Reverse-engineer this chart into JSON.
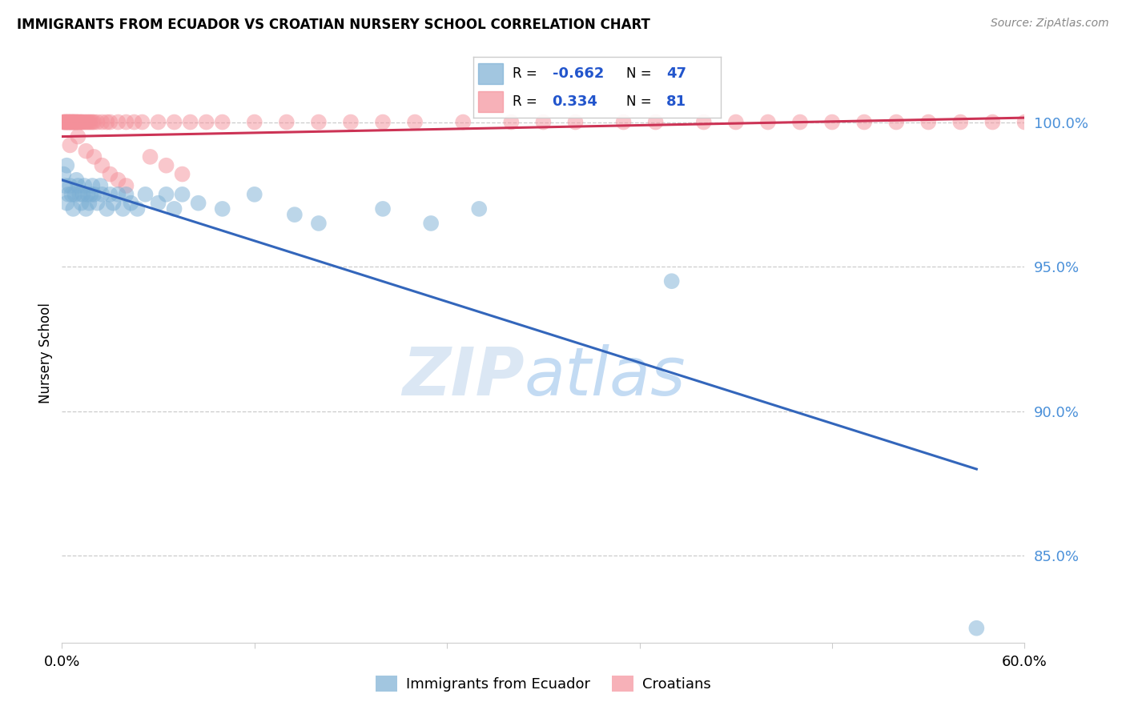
{
  "title": "IMMIGRANTS FROM ECUADOR VS CROATIAN NURSERY SCHOOL CORRELATION CHART",
  "source": "Source: ZipAtlas.com",
  "ylabel": "Nursery School",
  "xlim": [
    0.0,
    0.6
  ],
  "ylim": [
    82.0,
    102.0
  ],
  "blue_R": -0.662,
  "blue_N": 47,
  "pink_R": 0.334,
  "pink_N": 81,
  "blue_color": "#7BAFD4",
  "pink_color": "#F4909A",
  "blue_line_color": "#3366BB",
  "pink_line_color": "#CC3355",
  "ytick_vals": [
    85.0,
    90.0,
    95.0,
    100.0
  ],
  "ytick_labels": [
    "85.0%",
    "90.0%",
    "95.0%",
    "100.0%"
  ],
  "blue_line_x0": 0.0,
  "blue_line_y0": 98.0,
  "blue_line_x1": 0.57,
  "blue_line_y1": 88.0,
  "pink_line_x0": 0.0,
  "pink_line_y0": 99.5,
  "pink_line_x1": 0.6,
  "pink_line_y1": 100.15,
  "blue_scatter_x": [
    0.001,
    0.002,
    0.003,
    0.003,
    0.004,
    0.005,
    0.006,
    0.007,
    0.008,
    0.009,
    0.01,
    0.011,
    0.012,
    0.013,
    0.014,
    0.015,
    0.016,
    0.017,
    0.018,
    0.019,
    0.02,
    0.022,
    0.024,
    0.025,
    0.028,
    0.03,
    0.032,
    0.035,
    0.038,
    0.04,
    0.043,
    0.047,
    0.052,
    0.06,
    0.065,
    0.07,
    0.075,
    0.085,
    0.1,
    0.12,
    0.145,
    0.16,
    0.2,
    0.23,
    0.26,
    0.38,
    0.57
  ],
  "blue_scatter_y": [
    98.2,
    97.8,
    98.5,
    97.2,
    97.5,
    97.8,
    97.5,
    97.0,
    97.5,
    98.0,
    97.8,
    97.5,
    97.2,
    97.5,
    97.8,
    97.0,
    97.5,
    97.2,
    97.5,
    97.8,
    97.5,
    97.2,
    97.8,
    97.5,
    97.0,
    97.5,
    97.2,
    97.5,
    97.0,
    97.5,
    97.2,
    97.0,
    97.5,
    97.2,
    97.5,
    97.0,
    97.5,
    97.2,
    97.0,
    97.5,
    96.8,
    96.5,
    97.0,
    96.5,
    97.0,
    94.5,
    82.5
  ],
  "pink_scatter_x": [
    0.001,
    0.001,
    0.002,
    0.002,
    0.003,
    0.003,
    0.003,
    0.004,
    0.004,
    0.005,
    0.005,
    0.005,
    0.006,
    0.006,
    0.007,
    0.007,
    0.007,
    0.008,
    0.008,
    0.009,
    0.009,
    0.01,
    0.01,
    0.011,
    0.012,
    0.012,
    0.013,
    0.014,
    0.015,
    0.016,
    0.017,
    0.018,
    0.019,
    0.02,
    0.022,
    0.025,
    0.028,
    0.03,
    0.035,
    0.04,
    0.045,
    0.05,
    0.06,
    0.07,
    0.08,
    0.09,
    0.1,
    0.12,
    0.14,
    0.16,
    0.18,
    0.2,
    0.22,
    0.25,
    0.28,
    0.3,
    0.32,
    0.35,
    0.37,
    0.4,
    0.42,
    0.44,
    0.46,
    0.48,
    0.5,
    0.52,
    0.54,
    0.56,
    0.58,
    0.6,
    0.015,
    0.02,
    0.025,
    0.03,
    0.035,
    0.04,
    0.01,
    0.005,
    0.055,
    0.065,
    0.075
  ],
  "pink_scatter_y": [
    100.0,
    100.0,
    100.0,
    100.0,
    100.0,
    100.0,
    100.0,
    100.0,
    100.0,
    100.0,
    100.0,
    100.0,
    100.0,
    100.0,
    100.0,
    100.0,
    100.0,
    100.0,
    100.0,
    100.0,
    100.0,
    100.0,
    100.0,
    100.0,
    100.0,
    100.0,
    100.0,
    100.0,
    100.0,
    100.0,
    100.0,
    100.0,
    100.0,
    100.0,
    100.0,
    100.0,
    100.0,
    100.0,
    100.0,
    100.0,
    100.0,
    100.0,
    100.0,
    100.0,
    100.0,
    100.0,
    100.0,
    100.0,
    100.0,
    100.0,
    100.0,
    100.0,
    100.0,
    100.0,
    100.0,
    100.0,
    100.0,
    100.0,
    100.0,
    100.0,
    100.0,
    100.0,
    100.0,
    100.0,
    100.0,
    100.0,
    100.0,
    100.0,
    100.0,
    100.0,
    99.0,
    98.8,
    98.5,
    98.2,
    98.0,
    97.8,
    99.5,
    99.2,
    98.8,
    98.5,
    98.2
  ]
}
